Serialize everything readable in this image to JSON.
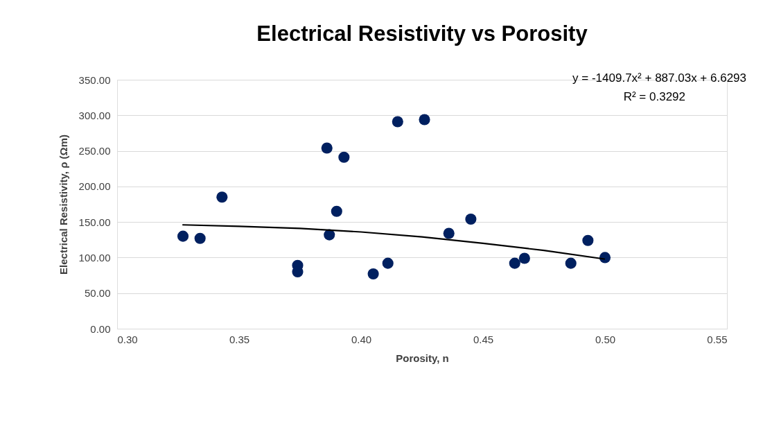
{
  "chart_data": {
    "type": "scatter",
    "title": "Electrical Resistivity vs Porosity",
    "xlabel": "Porosity, n",
    "ylabel": "Electrical Resistivity, ρ (Ωm)",
    "x": [
      0.327,
      0.334,
      0.343,
      0.374,
      0.374,
      0.386,
      0.393,
      0.39,
      0.387,
      0.405,
      0.411,
      0.415,
      0.426,
      0.436,
      0.445,
      0.463,
      0.467,
      0.486,
      0.493,
      0.5
    ],
    "series": [
      {
        "type": "scatter",
        "color": "#002060",
        "marker": "circle",
        "values": [
          130,
          127,
          185,
          89,
          80,
          254,
          241,
          165,
          132,
          77,
          92,
          291,
          294,
          134,
          154,
          92,
          99,
          92,
          124,
          100
        ]
      },
      {
        "type": "line",
        "color": "#000000",
        "line_style": "solid",
        "x": [
          0.327,
          0.35,
          0.375,
          0.4,
          0.425,
          0.45,
          0.475,
          0.4997
        ],
        "values": [
          146,
          144,
          141,
          136,
          129,
          120,
          110,
          98
        ]
      }
    ],
    "xlim": [
      0.3,
      0.55
    ],
    "ylim": [
      0,
      350
    ],
    "xticks": [
      {
        "value": 0.3,
        "label": "0.30"
      },
      {
        "value": 0.35,
        "label": "0.35"
      },
      {
        "value": 0.4,
        "label": "0.40"
      },
      {
        "value": 0.45,
        "label": "0.45"
      },
      {
        "value": 0.5,
        "label": "0.50"
      },
      {
        "value": 0.55,
        "label": "0.55"
      }
    ],
    "yticks": [
      {
        "value": 0,
        "label": "0.00"
      },
      {
        "value": 50,
        "label": "50.00"
      },
      {
        "value": 100,
        "label": "100.00"
      },
      {
        "value": 150,
        "label": "150.00"
      },
      {
        "value": 200,
        "label": "200.00"
      },
      {
        "value": 250,
        "label": "250.00"
      },
      {
        "value": 300,
        "label": "300.00"
      },
      {
        "value": 350,
        "label": "350.00"
      }
    ],
    "grid": "y",
    "annotations": [
      "y = -1409.7x² + 887.03x + 6.6293",
      "R² = 0.3292"
    ]
  }
}
